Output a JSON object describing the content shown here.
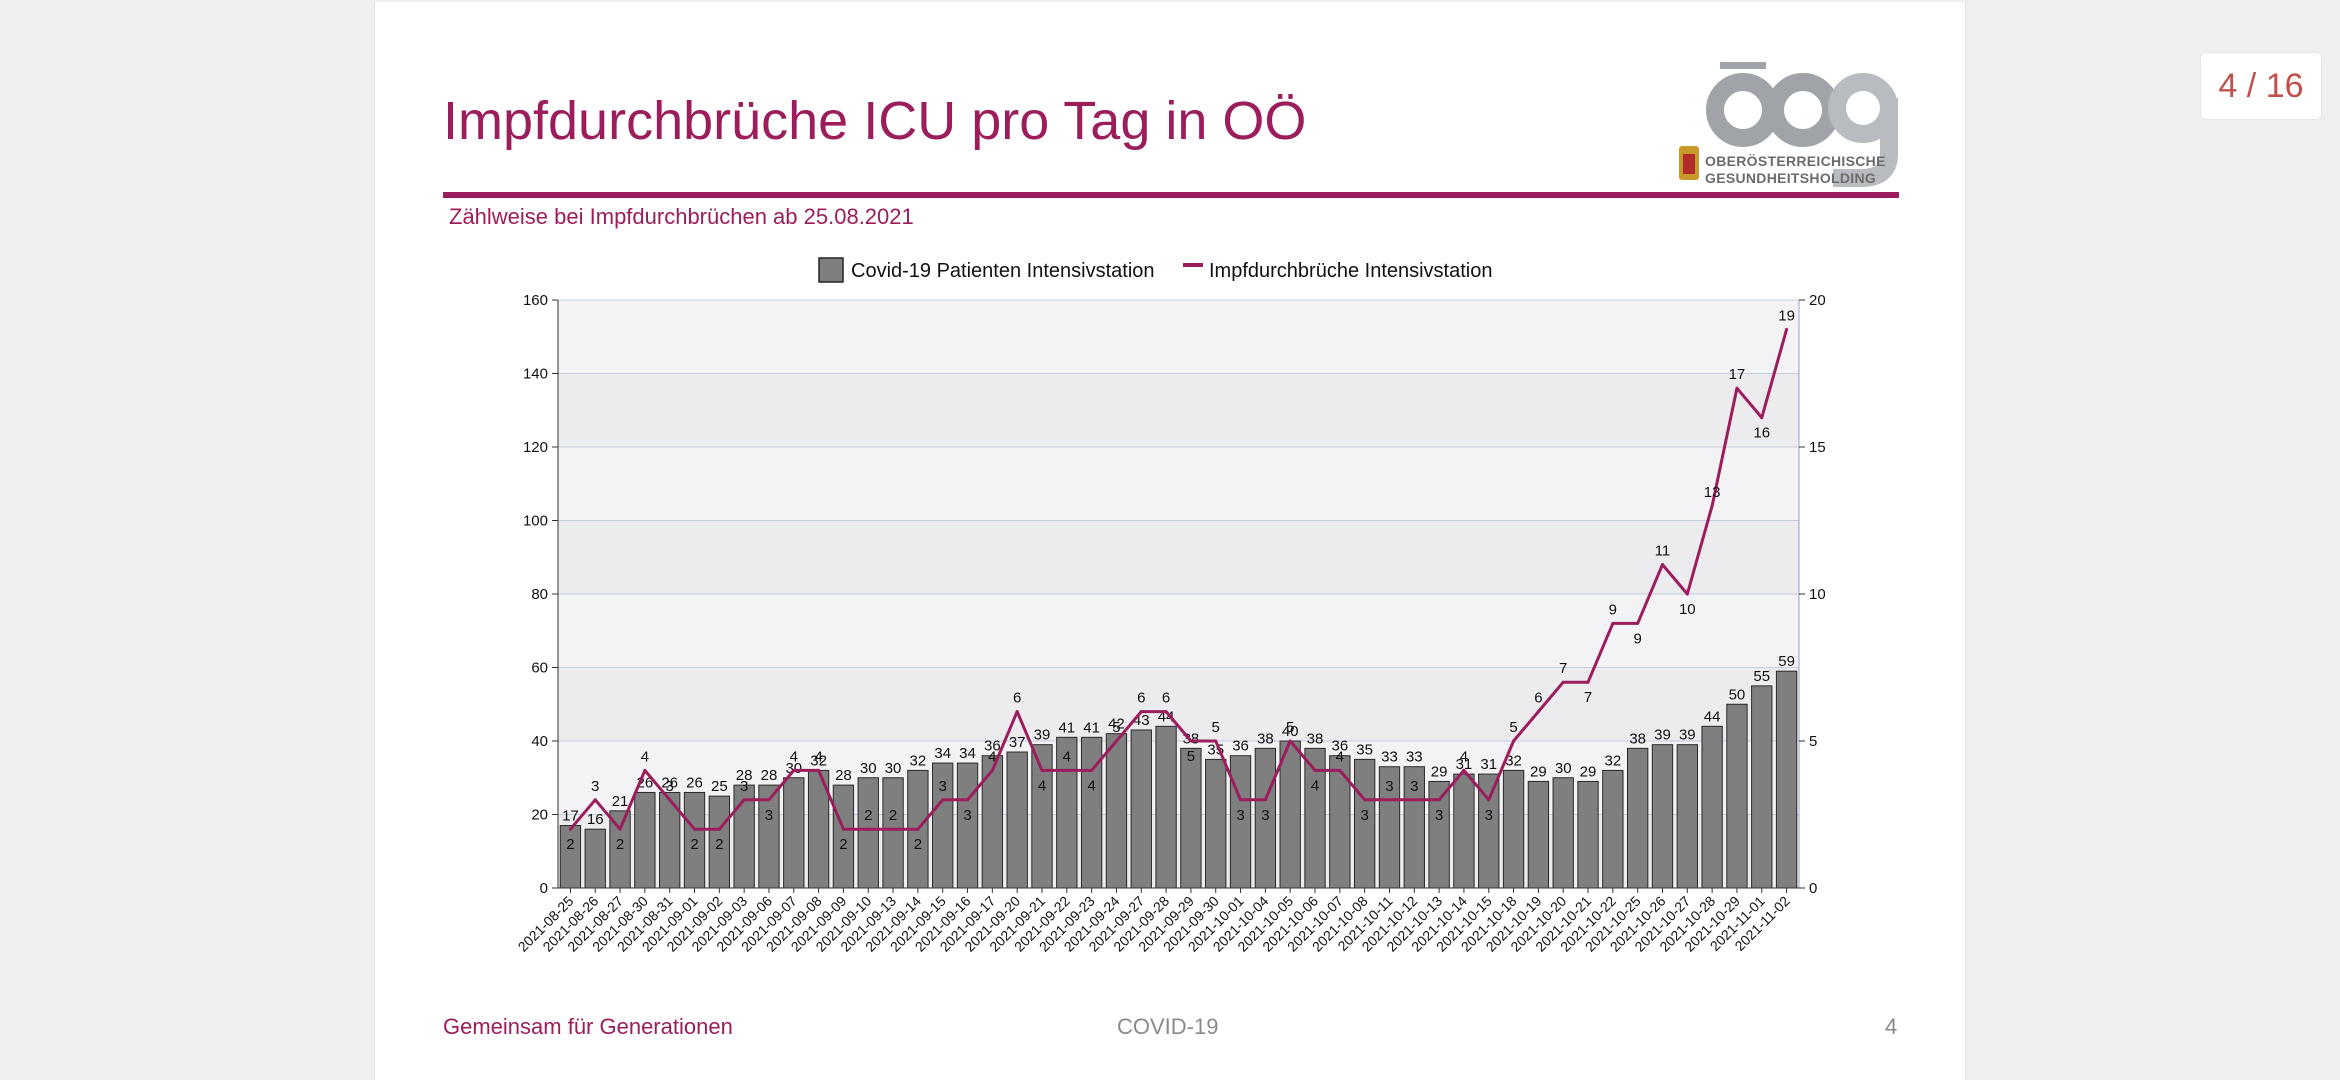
{
  "page_indicator": "4 / 16",
  "slide": {
    "title": "Impfdurchbrüche ICU pro Tag in OÖ",
    "subtitle": "Zählweise bei Impfdurchbrüchen ab 25.08.2021",
    "logo_text_line1": "OBERÖSTERREICHISCHE",
    "logo_text_line2": "GESUNDHEITSHOLDING",
    "footer_left": "Gemeinsam für Generationen",
    "footer_center": "COVID-19",
    "footer_right": "4"
  },
  "colors": {
    "accent": "#9b1d5c",
    "bar": "#7f7f7f",
    "line": "#9b1d5c"
  },
  "chart_data": {
    "type": "bar",
    "title": "",
    "xlabel": "",
    "ylabel": "",
    "ylim": [
      0,
      160
    ],
    "y2lim": [
      0,
      20
    ],
    "y_ticks": [
      0,
      20,
      40,
      60,
      80,
      100,
      120,
      140,
      160
    ],
    "y2_ticks": [
      0,
      5,
      10,
      15,
      20
    ],
    "legend_position": "top-center",
    "grid": true,
    "categories": [
      "2021-08-25",
      "2021-08-26",
      "2021-08-27",
      "2021-08-30",
      "2021-08-31",
      "2021-09-01",
      "2021-09-02",
      "2021-09-03",
      "2021-09-06",
      "2021-09-07",
      "2021-09-08",
      "2021-09-09",
      "2021-09-10",
      "2021-09-13",
      "2021-09-14",
      "2021-09-15",
      "2021-09-16",
      "2021-09-17",
      "2021-09-20",
      "2021-09-21",
      "2021-09-22",
      "2021-09-23",
      "2021-09-24",
      "2021-09-27",
      "2021-09-28",
      "2021-09-29",
      "2021-09-30",
      "2021-10-01",
      "2021-10-04",
      "2021-10-05",
      "2021-10-06",
      "2021-10-07",
      "2021-10-08",
      "2021-10-11",
      "2021-10-12",
      "2021-10-13",
      "2021-10-14",
      "2021-10-15",
      "2021-10-18",
      "2021-10-19",
      "2021-10-20",
      "2021-10-21",
      "2021-10-22",
      "2021-10-25",
      "2021-10-26",
      "2021-10-27",
      "2021-10-28",
      "2021-10-29",
      "2021-11-01",
      "2021-11-02"
    ],
    "series": [
      {
        "name": "Covid-19 Patienten Intensivstation",
        "type": "bar",
        "axis": "left",
        "values": [
          17,
          16,
          21,
          26,
          26,
          26,
          25,
          28,
          28,
          30,
          32,
          28,
          30,
          30,
          32,
          34,
          34,
          36,
          37,
          39,
          41,
          41,
          42,
          43,
          44,
          38,
          35,
          36,
          38,
          40,
          38,
          36,
          35,
          33,
          33,
          29,
          31,
          31,
          32,
          29,
          30,
          29,
          32,
          38,
          39,
          39,
          44,
          50,
          55,
          59
        ]
      },
      {
        "name": "Impfdurchbrüche Intensivstation",
        "type": "line",
        "axis": "right",
        "values": [
          2,
          3,
          2,
          4,
          3,
          2,
          2,
          3,
          3,
          4,
          4,
          2,
          2,
          2,
          2,
          3,
          3,
          4,
          6,
          4,
          4,
          4,
          5,
          6,
          6,
          5,
          5,
          3,
          3,
          5,
          4,
          4,
          3,
          3,
          3,
          3,
          4,
          3,
          5,
          6,
          7,
          7,
          9,
          9,
          11,
          10,
          13,
          17,
          16,
          19
        ]
      }
    ]
  }
}
